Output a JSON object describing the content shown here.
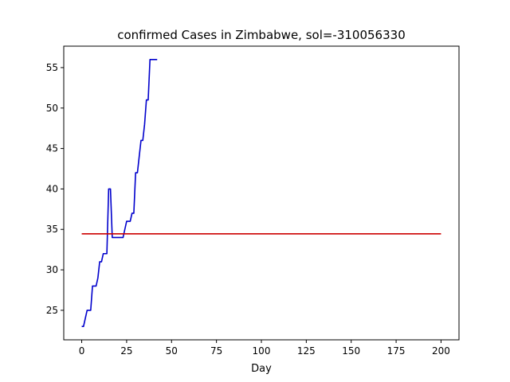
{
  "chart_data": {
    "type": "line",
    "title": "confirmed Cases in Zimbabwe, sol=-310056330",
    "xlabel": "Day",
    "ylabel": "",
    "xlim": [
      -10,
      210
    ],
    "ylim": [
      21.35,
      57.65
    ],
    "x_ticks": [
      0,
      25,
      50,
      75,
      100,
      125,
      150,
      175,
      200
    ],
    "y_ticks": [
      25,
      30,
      35,
      40,
      45,
      50,
      55
    ],
    "grid": false,
    "series": [
      {
        "color": "#0000cc",
        "x": [
          0,
          1,
          2,
          3,
          4,
          5,
          6,
          7,
          8,
          9,
          10,
          11,
          12,
          13,
          14,
          15,
          16,
          17,
          18,
          19,
          20,
          21,
          22,
          23,
          24,
          25,
          26,
          27,
          28,
          29,
          30,
          31,
          32,
          33,
          34,
          35,
          36,
          37,
          38,
          39,
          40,
          41,
          42
        ],
        "y": [
          23,
          23,
          24,
          25,
          25,
          25,
          28,
          28,
          28,
          29,
          31,
          31,
          32,
          32,
          32,
          40,
          40,
          34,
          34,
          34,
          34,
          34,
          34,
          34,
          35,
          36,
          36,
          36,
          37,
          37,
          42,
          42,
          44,
          46,
          46,
          48,
          51,
          51,
          56,
          56,
          56,
          56,
          56
        ]
      },
      {
        "color": "#cc0000",
        "x": [
          0,
          200
        ],
        "y": [
          34.45,
          34.45
        ]
      }
    ]
  }
}
